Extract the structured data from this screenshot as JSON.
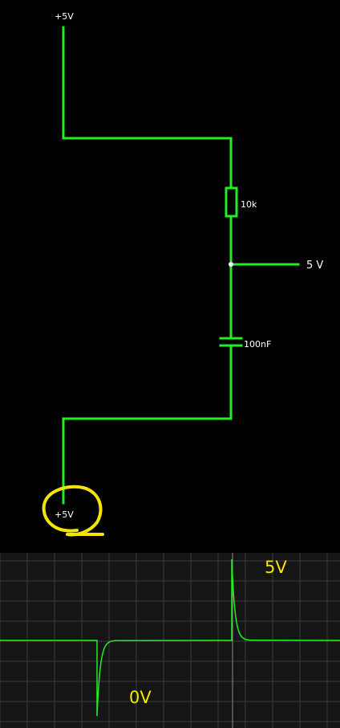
{
  "schematic": {
    "supply_top_label": "+5V",
    "resistor_label": "10k",
    "capacitor_label": "100nF",
    "output_label": "5 V",
    "supply_bottom_label": "+5V"
  },
  "scope": {
    "label_high": "5V",
    "label_low": "0V"
  },
  "colors": {
    "wire": "#22ee22",
    "annotation": "#f4e400",
    "background": "#000000",
    "scope_background": "#151515",
    "grid": "#3a3a3a"
  }
}
